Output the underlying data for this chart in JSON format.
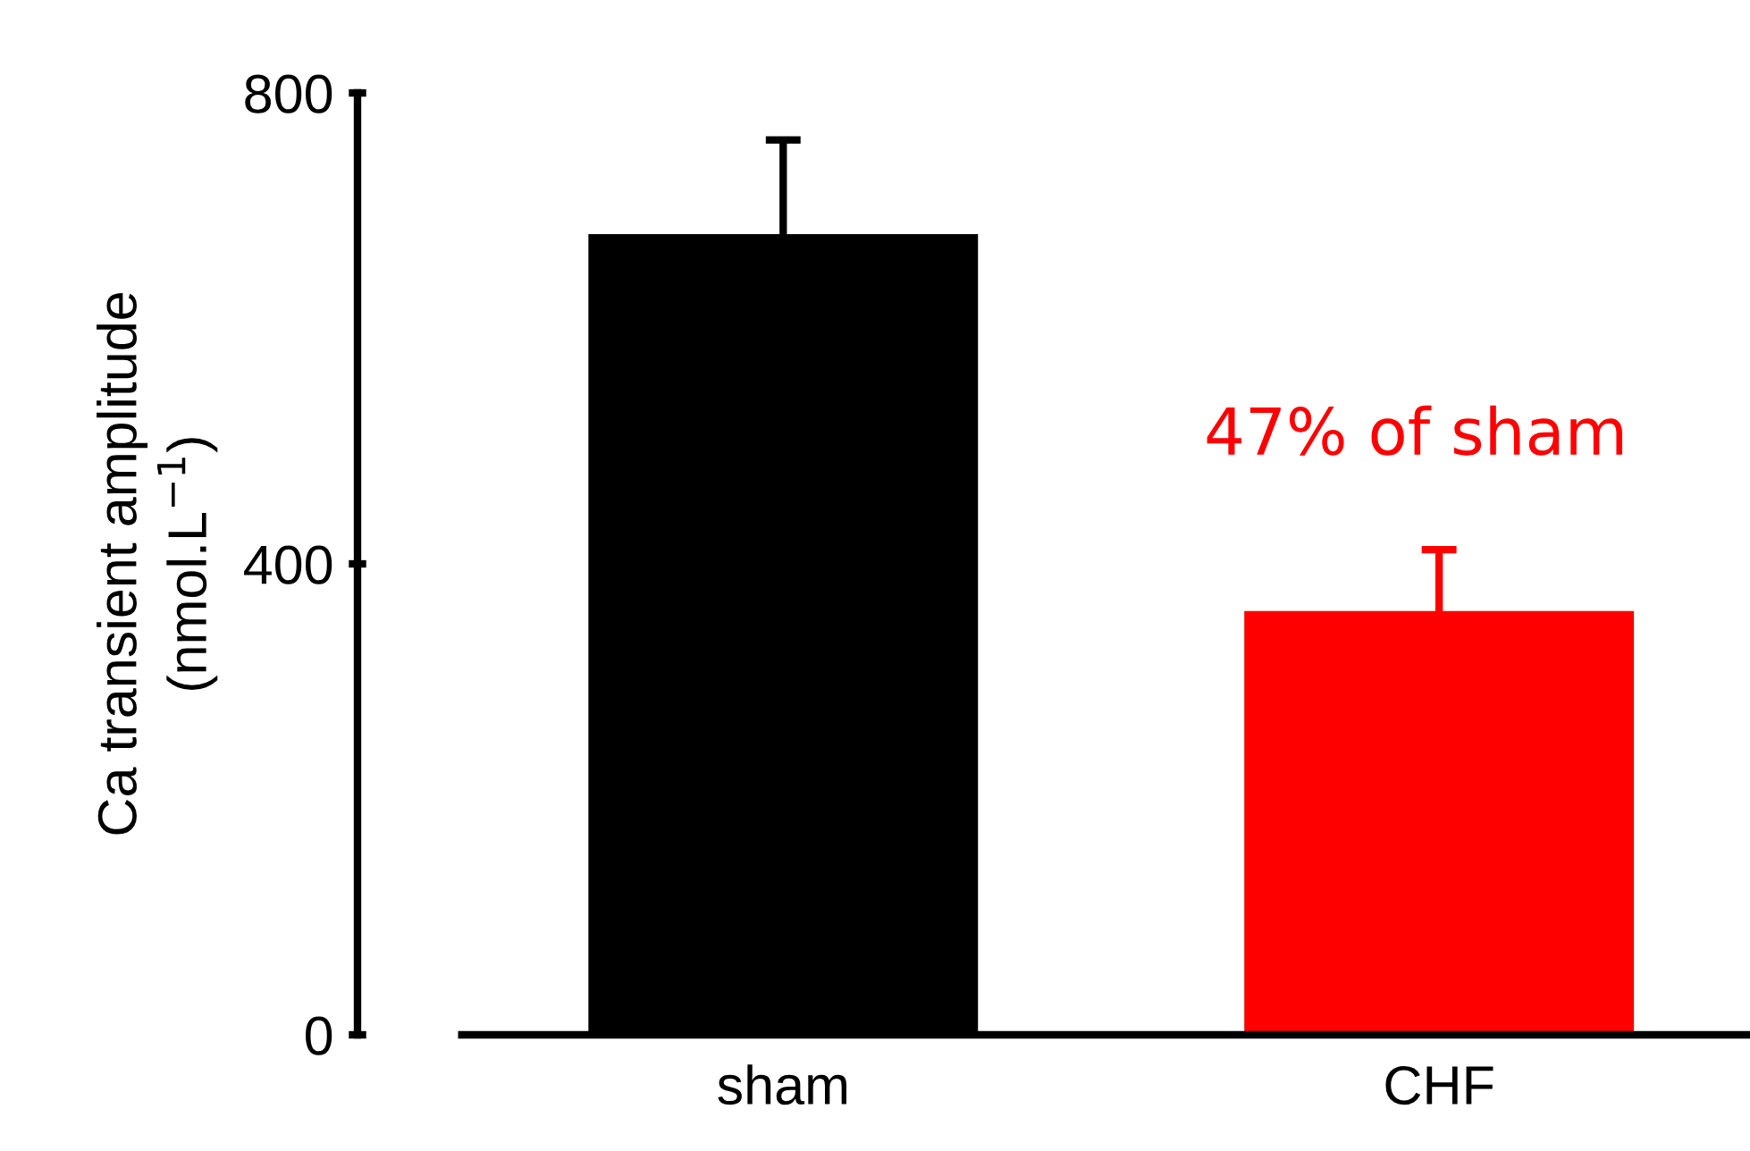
{
  "chart_data": {
    "type": "bar",
    "ylabel": "Ca transient amplitude\n(nmol.L$^{−1}$)",
    "categories": [
      "sham",
      "CHF"
    ],
    "values": [
      680,
      360
    ],
    "errors": [
      80,
      52
    ],
    "colors": [
      "#000000",
      "#ff0000"
    ],
    "ylim": [
      0,
      800
    ],
    "yticks": [
      0,
      400,
      800
    ],
    "grid": false,
    "legend": false,
    "annotations": [
      "47% of sham"
    ]
  }
}
